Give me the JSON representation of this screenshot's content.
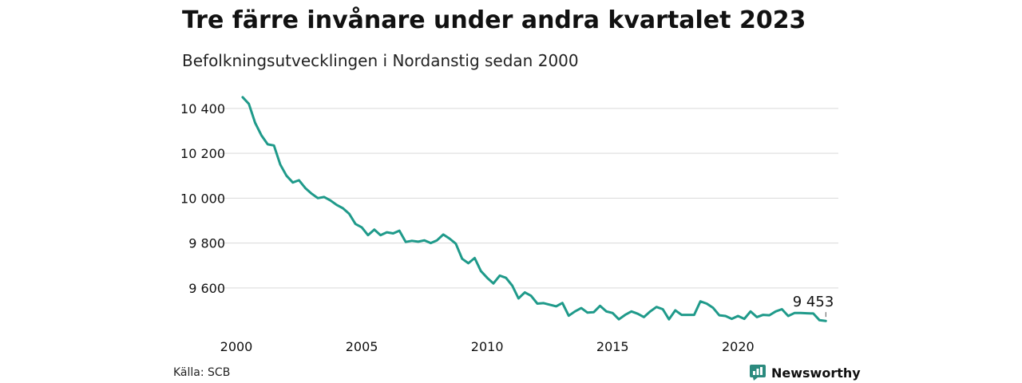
{
  "header": {
    "title": "Tre färre invånare under andra kvartalet 2023",
    "subtitle": "Befolkningsutvecklingen i Nordanstig sedan 2000"
  },
  "footer": {
    "source": "Källa: SCB",
    "brand": "Newsworthy"
  },
  "colors": {
    "line": "#1f9a8a",
    "grid": "#d9d9d9",
    "brand": "#2b8a7e"
  },
  "chart_data": {
    "type": "line",
    "title": "Tre färre invånare under andra kvartalet 2023",
    "subtitle": "Befolkningsutvecklingen i Nordanstig sedan 2000",
    "xlabel": "",
    "ylabel": "",
    "x_ticks": [
      "2000",
      "2005",
      "2010",
      "2015",
      "2020"
    ],
    "y_ticks": [
      "9 600",
      "9 800",
      "10 000",
      "10 200",
      "10 400"
    ],
    "xlim": [
      2000,
      2024
    ],
    "ylim": [
      9450,
      10460
    ],
    "grid": true,
    "end_label": "9 453",
    "series": [
      {
        "x": [
          2000.25,
          2000.5,
          2000.75,
          2001.0,
          2001.25,
          2001.5,
          2001.75,
          2002.0,
          2002.25,
          2002.5,
          2002.75,
          2003.0,
          2003.25,
          2003.5,
          2003.75,
          2004.0,
          2004.25,
          2004.5,
          2004.75,
          2005.0,
          2005.25,
          2005.5,
          2005.75,
          2006.0,
          2006.25,
          2006.5,
          2006.75,
          2007.0,
          2007.25,
          2007.5,
          2007.75,
          2008.0,
          2008.25,
          2008.5,
          2008.75,
          2009.0,
          2009.25,
          2009.5,
          2009.75,
          2010.0,
          2010.25,
          2010.5,
          2010.75,
          2011.0,
          2011.25,
          2011.5,
          2011.75,
          2012.0,
          2012.25,
          2012.5,
          2012.75,
          2013.0,
          2013.25,
          2013.5,
          2013.75,
          2014.0,
          2014.25,
          2014.5,
          2014.75,
          2015.0,
          2015.25,
          2015.5,
          2015.75,
          2016.0,
          2016.25,
          2016.5,
          2016.75,
          2017.0,
          2017.25,
          2017.5,
          2017.75,
          2018.0,
          2018.25,
          2018.5,
          2018.75,
          2019.0,
          2019.25,
          2019.5,
          2019.75,
          2020.0,
          2020.25,
          2020.5,
          2020.75,
          2021.0,
          2021.25,
          2021.5,
          2021.75,
          2022.0,
          2022.25,
          2022.5,
          2022.75,
          2023.0,
          2023.25,
          2023.5
        ],
        "values": [
          10450,
          10420,
          10335,
          10280,
          10240,
          10235,
          10150,
          10100,
          10070,
          10080,
          10045,
          10020,
          10000,
          10005,
          9990,
          9970,
          9955,
          9930,
          9885,
          9870,
          9835,
          9860,
          9835,
          9848,
          9843,
          9855,
          9805,
          9810,
          9806,
          9812,
          9800,
          9812,
          9838,
          9820,
          9797,
          9730,
          9710,
          9733,
          9675,
          9645,
          9620,
          9655,
          9645,
          9610,
          9553,
          9580,
          9565,
          9530,
          9532,
          9525,
          9518,
          9533,
          9476,
          9495,
          9510,
          9490,
          9492,
          9520,
          9495,
          9488,
          9460,
          9480,
          9495,
          9485,
          9470,
          9495,
          9515,
          9505,
          9460,
          9500,
          9480,
          9480,
          9480,
          9540,
          9530,
          9512,
          9478,
          9475,
          9462,
          9475,
          9462,
          9495,
          9470,
          9480,
          9478,
          9495,
          9505,
          9475,
          9488,
          9488,
          9487,
          9486,
          9456,
          9453
        ]
      }
    ]
  }
}
